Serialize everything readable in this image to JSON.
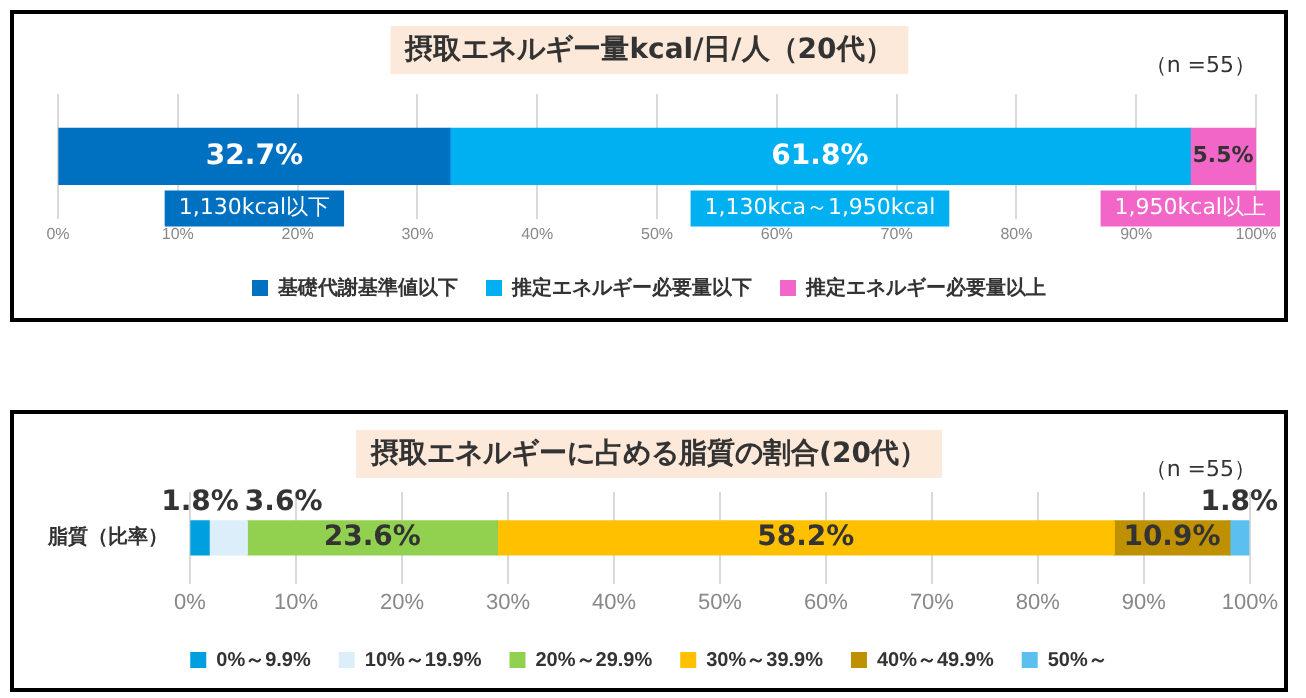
{
  "chart_data": [
    {
      "type": "bar",
      "orientation": "horizontal",
      "stacked": true,
      "title": "摂取エネルギー量kcal/日/人（20代）",
      "subtitle": "（n =55）",
      "categories": [
        null
      ],
      "series": [
        {
          "name": "基礎代謝基準値以下",
          "color": "#0070c0",
          "values": [
            32.7
          ],
          "value_labels": [
            "32.7%"
          ]
        },
        {
          "name": "推定エネルギー必要量以下",
          "color": "#00b0f0",
          "values": [
            61.8
          ],
          "value_labels": [
            "61.8%"
          ]
        },
        {
          "name": "推定エネルギー必要量以上",
          "color": "#f266c8",
          "values": [
            5.5
          ],
          "value_labels": [
            "5.5%"
          ]
        }
      ],
      "annotations": [
        "1,130kcal以下",
        "1,130kca～1,950kcal",
        "1,950kcal以上"
      ],
      "xlim": [
        0,
        100
      ],
      "xticks": [
        {
          "value": 0,
          "label": "0%"
        },
        {
          "value": 10,
          "label": "10%"
        },
        {
          "value": 20,
          "label": "20%"
        },
        {
          "value": 30,
          "label": "30%"
        },
        {
          "value": 40,
          "label": "40%"
        },
        {
          "value": 50,
          "label": "50%"
        },
        {
          "value": 60,
          "label": "60%"
        },
        {
          "value": 70,
          "label": "70%"
        },
        {
          "value": 80,
          "label": "80%"
        },
        {
          "value": 90,
          "label": "90%"
        },
        {
          "value": 100,
          "label": "100%"
        }
      ],
      "grid": "x",
      "legend": "bottom"
    },
    {
      "type": "bar",
      "orientation": "horizontal",
      "stacked": true,
      "title": "摂取エネルギーに占める脂質の割合(20代）",
      "subtitle": "（n =55）",
      "categories": [
        "脂質（比率）"
      ],
      "series": [
        {
          "name": "0%～9.9%",
          "color": "#00a0e0",
          "values": [
            1.8
          ],
          "value_labels": [
            "1.8%"
          ]
        },
        {
          "name": "10%～19.9%",
          "color": "#dbeef9",
          "values": [
            3.6
          ],
          "value_labels": [
            "3.6%"
          ]
        },
        {
          "name": "20%～29.9%",
          "color": "#92d050",
          "values": [
            23.6
          ],
          "value_labels": [
            "23.6%"
          ]
        },
        {
          "name": "30%～39.9%",
          "color": "#ffc000",
          "values": [
            58.2
          ],
          "value_labels": [
            "58.2%"
          ]
        },
        {
          "name": "40%～49.9%",
          "color": "#bf9000",
          "values": [
            10.9
          ],
          "value_labels": [
            "10.9%"
          ]
        },
        {
          "name": "50%～",
          "color": "#5bc0f0",
          "values": [
            1.8
          ],
          "value_labels": [
            "1.8%"
          ]
        }
      ],
      "xlim": [
        0,
        100
      ],
      "xticks": [
        {
          "value": 0,
          "label": "0%"
        },
        {
          "value": 10,
          "label": "10%"
        },
        {
          "value": 20,
          "label": "20%"
        },
        {
          "value": 30,
          "label": "30%"
        },
        {
          "value": 40,
          "label": "40%"
        },
        {
          "value": 50,
          "label": "50%"
        },
        {
          "value": 60,
          "label": "60%"
        },
        {
          "value": 70,
          "label": "70%"
        },
        {
          "value": 80,
          "label": "80%"
        },
        {
          "value": 90,
          "label": "90%"
        },
        {
          "value": 100,
          "label": "100%"
        }
      ],
      "grid": "x",
      "legend": "bottom"
    }
  ]
}
